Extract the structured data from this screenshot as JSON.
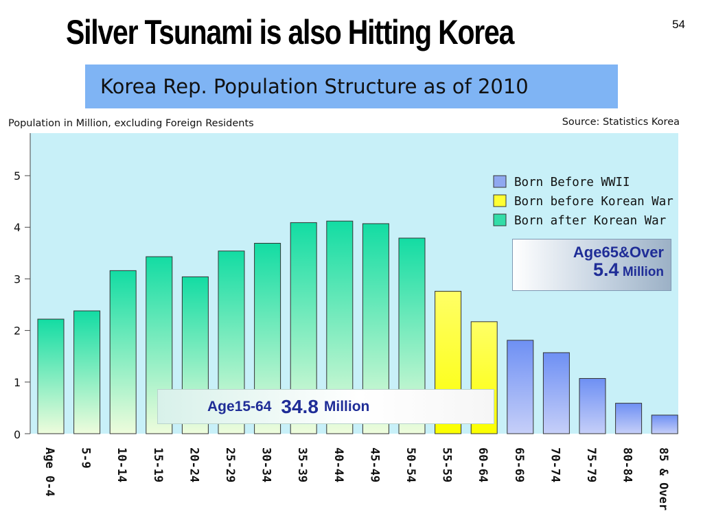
{
  "slide": {
    "title": "Silver Tsunami is also Hitting Korea",
    "page_number": "54"
  },
  "chart_data": {
    "type": "bar",
    "title": "Korea Rep. Population Structure as of 2010",
    "ylabel": "Population in Million, excluding Foreign Residents",
    "source": "Source:  Statistics Korea",
    "ylim": [
      0,
      5.5
    ],
    "yticks": [
      "0",
      "1",
      "2",
      "3",
      "4",
      "5"
    ],
    "categories": [
      "Age 0-4",
      "5-9",
      "10-14",
      "15-19",
      "20-24",
      "25-29",
      "30-34",
      "35-39",
      "40-44",
      "45-49",
      "50-54",
      "55-59",
      "60-64",
      "65-69",
      "70-74",
      "75-79",
      "80-84",
      "85 & Over"
    ],
    "values": [
      2.22,
      2.38,
      3.16,
      3.43,
      3.04,
      3.54,
      3.69,
      4.09,
      4.12,
      4.07,
      3.79,
      2.76,
      2.17,
      1.81,
      1.57,
      1.07,
      0.59,
      0.36
    ],
    "groups": [
      2,
      2,
      2,
      2,
      2,
      2,
      2,
      2,
      2,
      2,
      2,
      1,
      1,
      0,
      0,
      0,
      0,
      0
    ],
    "legend": [
      {
        "name": "Born Before WWII",
        "color": "#8fa8f0"
      },
      {
        "name": "Born before Korean War",
        "color": "#ffff33"
      },
      {
        "name": "Born after Korean War",
        "color": "#33dda8"
      }
    ],
    "legend_position": "top-right",
    "plot_background": "#c8f0f8",
    "grid": false
  },
  "callouts": {
    "age65": {
      "label": "Age65&Over",
      "value": "5.4",
      "unit": "Million"
    },
    "age15_64": {
      "label": "Age15-64",
      "value": "34.8",
      "unit": "Million"
    }
  }
}
